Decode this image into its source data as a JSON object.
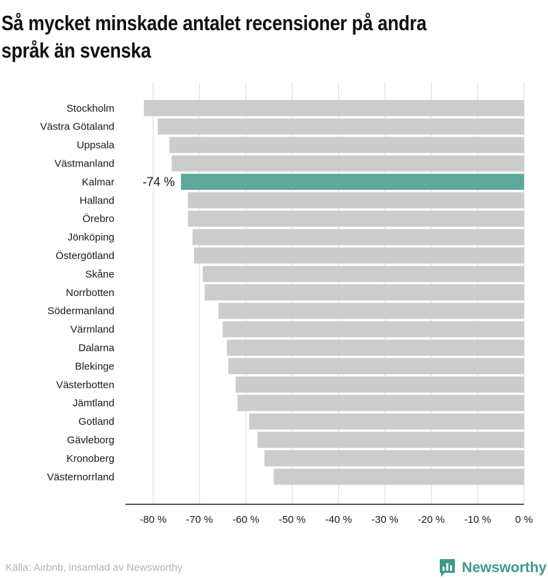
{
  "title": "Så mycket minskade antalet recensioner på andra språk än svenska",
  "source": "Källa: Airbnb, insamlad av Newsworthy",
  "brand": {
    "name": "Newsworthy",
    "icon": "newsworthy-logo-icon",
    "color": "#3d9b8c"
  },
  "colors": {
    "bar": "#cccccc",
    "highlight": "#5da89b",
    "grid": "#d9d9d9",
    "axis": "#222222"
  },
  "chart_data": {
    "type": "bar",
    "orientation": "horizontal",
    "categories": [
      "Stockholm",
      "Västra Götaland",
      "Uppsala",
      "Västmanland",
      "Kalmar",
      "Halland",
      "Örebro",
      "Jönköping",
      "Östergötland",
      "Skåne",
      "Norrbotten",
      "Södermanland",
      "Värmland",
      "Dalarna",
      "Blekinge",
      "Västerbotten",
      "Jämtland",
      "Gotland",
      "Gävleborg",
      "Kronoberg",
      "Västernorrland"
    ],
    "values": [
      -82,
      -79,
      -76.5,
      -76,
      -74,
      -72.5,
      -72.5,
      -71.5,
      -71.2,
      -69.3,
      -68.9,
      -65.9,
      -65,
      -64.1,
      -63.8,
      -62.2,
      -61.8,
      -59.3,
      -57.5,
      -56,
      -54
    ],
    "highlight": {
      "category": "Kalmar",
      "label": "-74 %"
    },
    "xlim": [
      -86,
      0
    ],
    "xticks": [
      -80,
      -70,
      -60,
      -50,
      -40,
      -30,
      -20,
      -10,
      0
    ],
    "xtick_labels": [
      "-80 %",
      "-70 %",
      "-60 %",
      "-50 %",
      "-40 %",
      "-30 %",
      "-20 %",
      "-10 %",
      "0 %"
    ],
    "grid": true,
    "xlabel": "",
    "ylabel": ""
  }
}
